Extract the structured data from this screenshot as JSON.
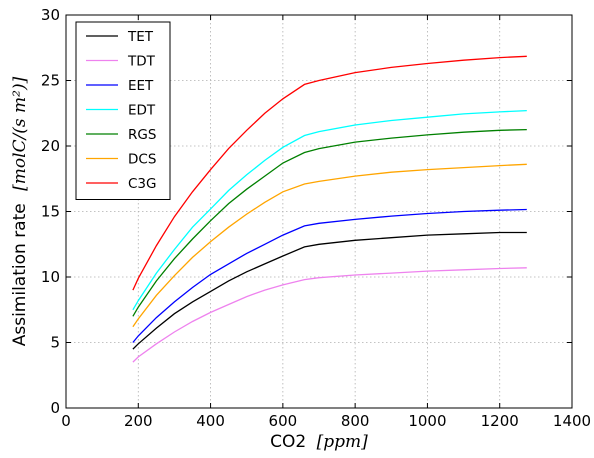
{
  "chart_data": {
    "type": "line",
    "xlabel": "CO2",
    "xlabel_unit": "[ppm]",
    "ylabel": "Assimilation rate",
    "ylabel_unit": "[molC/(s m²)]",
    "xlim": [
      0,
      1400
    ],
    "ylim": [
      0,
      30
    ],
    "xticks": [
      0,
      200,
      400,
      600,
      800,
      1000,
      1200,
      1400
    ],
    "yticks": [
      0,
      5,
      10,
      15,
      20,
      25,
      30
    ],
    "grid": true,
    "legend_position": "top-left",
    "x": [
      185,
      200,
      250,
      300,
      350,
      400,
      450,
      500,
      550,
      600,
      660,
      700,
      800,
      900,
      1000,
      1100,
      1200,
      1275
    ],
    "series": [
      {
        "name": "TET",
        "color": "#000000",
        "values": [
          4.5,
          4.9,
          6.1,
          7.2,
          8.1,
          8.9,
          9.7,
          10.4,
          11.0,
          11.6,
          12.3,
          12.5,
          12.8,
          13.0,
          13.2,
          13.3,
          13.4,
          13.4
        ]
      },
      {
        "name": "TDT",
        "color": "#ee82ee",
        "values": [
          3.5,
          3.9,
          4.9,
          5.8,
          6.6,
          7.3,
          7.9,
          8.5,
          9.0,
          9.4,
          9.8,
          9.95,
          10.15,
          10.3,
          10.45,
          10.55,
          10.65,
          10.7
        ]
      },
      {
        "name": "EET",
        "color": "#0000ff",
        "values": [
          5.0,
          5.5,
          6.9,
          8.1,
          9.2,
          10.2,
          11.0,
          11.8,
          12.5,
          13.2,
          13.9,
          14.1,
          14.4,
          14.65,
          14.85,
          15.0,
          15.1,
          15.15
        ]
      },
      {
        "name": "EDT",
        "color": "#00ffff",
        "values": [
          7.5,
          8.2,
          10.3,
          12.1,
          13.8,
          15.2,
          16.6,
          17.8,
          18.9,
          19.9,
          20.8,
          21.1,
          21.6,
          21.95,
          22.2,
          22.45,
          22.6,
          22.7
        ]
      },
      {
        "name": "RGS",
        "color": "#008000",
        "values": [
          7.0,
          7.7,
          9.7,
          11.4,
          12.9,
          14.3,
          15.6,
          16.7,
          17.7,
          18.7,
          19.5,
          19.8,
          20.3,
          20.6,
          20.85,
          21.05,
          21.2,
          21.25
        ]
      },
      {
        "name": "DCS",
        "color": "#ffa500",
        "values": [
          6.2,
          6.8,
          8.6,
          10.1,
          11.5,
          12.7,
          13.8,
          14.8,
          15.7,
          16.5,
          17.1,
          17.3,
          17.7,
          18.0,
          18.2,
          18.35,
          18.5,
          18.6
        ]
      },
      {
        "name": "C3G",
        "color": "#ff0000",
        "values": [
          9.0,
          9.9,
          12.4,
          14.6,
          16.5,
          18.2,
          19.8,
          21.2,
          22.5,
          23.6,
          24.7,
          25.0,
          25.6,
          26.0,
          26.3,
          26.55,
          26.75,
          26.85
        ]
      }
    ]
  }
}
